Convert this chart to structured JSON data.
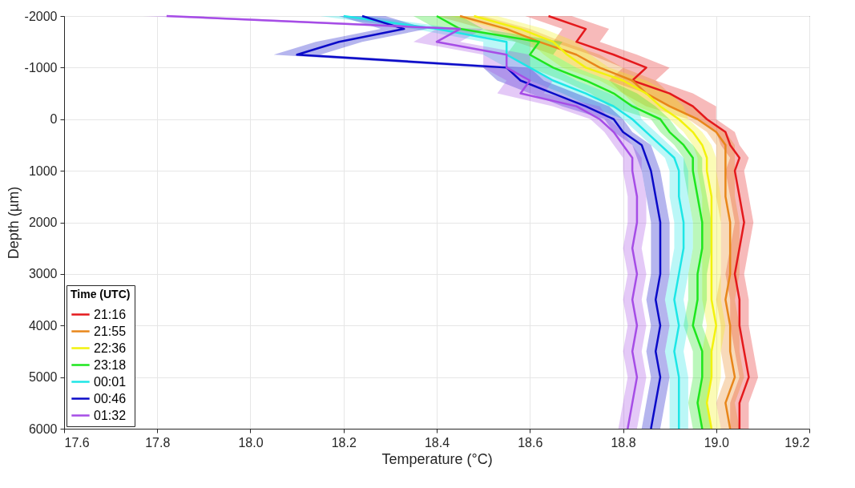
{
  "chart_data": {
    "type": "line",
    "orientation": "horizontal",
    "xlabel": "Temperature (°C)",
    "ylabel": "Depth (µm)",
    "legend_title": "Time (UTC)",
    "legend": "bottom left",
    "grid": true,
    "xlim": [
      17.6,
      19.2
    ],
    "xticks": [
      {
        "value": 17.6,
        "label": "17.6"
      },
      {
        "value": 17.8,
        "label": "17.8"
      },
      {
        "value": 18,
        "label": "18.0"
      },
      {
        "value": 18.2,
        "label": "18.2"
      },
      {
        "value": 18.4,
        "label": "18.4"
      },
      {
        "value": 18.6,
        "label": "18.6"
      },
      {
        "value": 18.8,
        "label": "18.8"
      },
      {
        "value": 19,
        "label": "19.0"
      },
      {
        "value": 19.2,
        "label": "19.2"
      }
    ],
    "ylim": [
      6000,
      -2000
    ],
    "yticks": [
      -2000,
      -1000,
      0,
      1000,
      2000,
      3000,
      4000,
      5000,
      6000
    ],
    "x": [
      -2000,
      -1750,
      -1500,
      -1250,
      -1000,
      -750,
      -500,
      -250,
      0,
      250,
      500,
      750,
      1000,
      1500,
      2000,
      2500,
      3000,
      3500,
      4000,
      4500,
      5000,
      5500,
      6000
    ],
    "series": [
      {
        "name": "21:16",
        "color": "#e4191c",
        "values": [
          18.64,
          18.72,
          18.7,
          18.78,
          18.85,
          18.82,
          18.9,
          18.95,
          18.98,
          19.02,
          19.03,
          19.05,
          19.04,
          19.05,
          19.06,
          19.05,
          19.04,
          19.05,
          19.05,
          19.06,
          19.07,
          19.05,
          19.05
        ],
        "lower": [
          18.59,
          18.67,
          18.65,
          18.73,
          18.8,
          18.77,
          18.85,
          18.9,
          18.96,
          19,
          19.01,
          19.03,
          19.02,
          19.03,
          19.04,
          19.03,
          19.02,
          19.03,
          19.03,
          19.04,
          19.05,
          19.03,
          19.03
        ],
        "upper": [
          18.69,
          18.77,
          18.75,
          18.83,
          18.9,
          18.87,
          18.95,
          19,
          19,
          19.04,
          19.05,
          19.07,
          19.06,
          19.07,
          19.08,
          19.07,
          19.06,
          19.07,
          19.07,
          19.08,
          19.09,
          19.07,
          19.07
        ]
      },
      {
        "name": "21:55",
        "color": "#e8861a",
        "values": [
          18.45,
          18.55,
          18.62,
          18.7,
          18.75,
          18.82,
          18.85,
          18.9,
          18.96,
          19,
          19.02,
          19.02,
          19.02,
          19.02,
          19.03,
          19.03,
          19.03,
          19.02,
          19.03,
          19.03,
          19.04,
          19.02,
          19.03
        ],
        "lower": [
          18.4,
          18.5,
          18.57,
          18.65,
          18.7,
          18.77,
          18.8,
          18.85,
          18.94,
          18.98,
          19,
          19,
          19,
          19,
          19.01,
          19.01,
          19.01,
          19,
          19.01,
          19.01,
          19.02,
          19,
          19.01
        ],
        "upper": [
          18.5,
          18.6,
          18.67,
          18.75,
          18.8,
          18.87,
          18.9,
          18.95,
          18.98,
          19.02,
          19.04,
          19.04,
          19.04,
          19.04,
          19.05,
          19.05,
          19.05,
          19.04,
          19.05,
          19.05,
          19.06,
          19.04,
          19.05
        ]
      },
      {
        "name": "22:36",
        "color": "#f2f20d",
        "values": [
          18.48,
          18.58,
          18.65,
          18.68,
          18.72,
          18.8,
          18.85,
          18.88,
          18.92,
          18.95,
          18.97,
          18.98,
          18.98,
          18.99,
          18.99,
          18.99,
          18.99,
          18.99,
          19,
          18.99,
          18.99,
          18.98,
          18.99
        ],
        "lower": [
          18.43,
          18.53,
          18.6,
          18.63,
          18.67,
          18.75,
          18.8,
          18.83,
          18.9,
          18.93,
          18.95,
          18.96,
          18.96,
          18.97,
          18.97,
          18.97,
          18.97,
          18.97,
          18.98,
          18.97,
          18.97,
          18.96,
          18.97
        ],
        "upper": [
          18.53,
          18.63,
          18.7,
          18.73,
          18.77,
          18.85,
          18.9,
          18.93,
          18.94,
          18.97,
          18.99,
          19,
          19,
          19.01,
          19.01,
          19.01,
          19.01,
          19.01,
          19.02,
          19.01,
          19.01,
          19,
          19.01
        ]
      },
      {
        "name": "23:18",
        "color": "#1ee61e",
        "values": [
          18.4,
          18.45,
          18.62,
          18.6,
          18.65,
          18.72,
          18.78,
          18.82,
          18.88,
          18.9,
          18.93,
          18.95,
          18.95,
          18.96,
          18.97,
          18.97,
          18.96,
          18.96,
          18.95,
          18.97,
          18.97,
          18.96,
          18.97
        ],
        "lower": [
          18.35,
          18.4,
          18.57,
          18.55,
          18.6,
          18.67,
          18.73,
          18.77,
          18.86,
          18.88,
          18.91,
          18.93,
          18.93,
          18.94,
          18.95,
          18.95,
          18.94,
          18.94,
          18.93,
          18.95,
          18.95,
          18.94,
          18.95
        ],
        "upper": [
          18.45,
          18.5,
          18.67,
          18.65,
          18.7,
          18.77,
          18.83,
          18.87,
          18.9,
          18.92,
          18.95,
          18.97,
          18.97,
          18.98,
          18.99,
          18.99,
          18.98,
          18.98,
          18.97,
          18.99,
          18.99,
          18.98,
          18.99
        ]
      },
      {
        "name": "00:01",
        "color": "#1ee6e6",
        "values": [
          18.2,
          18.4,
          18.55,
          18.55,
          18.6,
          18.65,
          18.72,
          18.78,
          18.82,
          18.85,
          18.88,
          18.91,
          18.92,
          18.92,
          18.93,
          18.93,
          18.92,
          18.91,
          18.92,
          18.91,
          18.92,
          18.92,
          18.92
        ],
        "lower": [
          18.15,
          18.35,
          18.5,
          18.5,
          18.55,
          18.6,
          18.67,
          18.73,
          18.8,
          18.83,
          18.86,
          18.89,
          18.9,
          18.9,
          18.91,
          18.91,
          18.9,
          18.89,
          18.9,
          18.89,
          18.9,
          18.9,
          18.9
        ],
        "upper": [
          18.25,
          18.45,
          18.6,
          18.6,
          18.65,
          18.7,
          18.77,
          18.83,
          18.84,
          18.87,
          18.9,
          18.93,
          18.94,
          18.94,
          18.95,
          18.95,
          18.94,
          18.93,
          18.94,
          18.93,
          18.94,
          18.94,
          18.94
        ]
      },
      {
        "name": "00:46",
        "color": "#0a0ac8",
        "values": [
          18.24,
          18.33,
          18.19,
          18.1,
          18.55,
          18.58,
          18.65,
          18.72,
          18.78,
          18.8,
          18.84,
          18.85,
          18.86,
          18.87,
          18.88,
          18.88,
          18.88,
          18.87,
          18.88,
          18.87,
          18.88,
          18.87,
          18.86
        ],
        "lower": [
          18.19,
          18.28,
          18.14,
          18.05,
          18.5,
          18.53,
          18.6,
          18.67,
          18.76,
          18.78,
          18.82,
          18.83,
          18.84,
          18.85,
          18.86,
          18.86,
          18.86,
          18.85,
          18.86,
          18.85,
          18.86,
          18.85,
          18.84
        ],
        "upper": [
          18.29,
          18.38,
          18.24,
          18.15,
          18.6,
          18.63,
          18.7,
          18.77,
          18.8,
          18.82,
          18.86,
          18.87,
          18.88,
          18.89,
          18.9,
          18.9,
          18.9,
          18.89,
          18.9,
          18.89,
          18.9,
          18.89,
          18.88
        ]
      },
      {
        "name": "01:32",
        "color": "#a64de6",
        "values": [
          17.82,
          18.45,
          18.4,
          18.55,
          18.55,
          18.6,
          18.58,
          18.7,
          18.75,
          18.78,
          18.8,
          18.82,
          18.82,
          18.83,
          18.83,
          18.82,
          18.83,
          18.82,
          18.83,
          18.82,
          18.83,
          18.82,
          18.81
        ],
        "lower": [
          17.77,
          18.4,
          18.35,
          18.5,
          18.5,
          18.55,
          18.53,
          18.65,
          18.73,
          18.76,
          18.78,
          18.8,
          18.8,
          18.81,
          18.81,
          18.8,
          18.81,
          18.8,
          18.81,
          18.8,
          18.81,
          18.8,
          18.79
        ],
        "upper": [
          17.87,
          18.5,
          18.45,
          18.6,
          18.6,
          18.65,
          18.63,
          18.75,
          18.77,
          18.8,
          18.82,
          18.84,
          18.84,
          18.85,
          18.85,
          18.84,
          18.85,
          18.84,
          18.85,
          18.84,
          18.85,
          18.84,
          18.83
        ]
      }
    ]
  }
}
